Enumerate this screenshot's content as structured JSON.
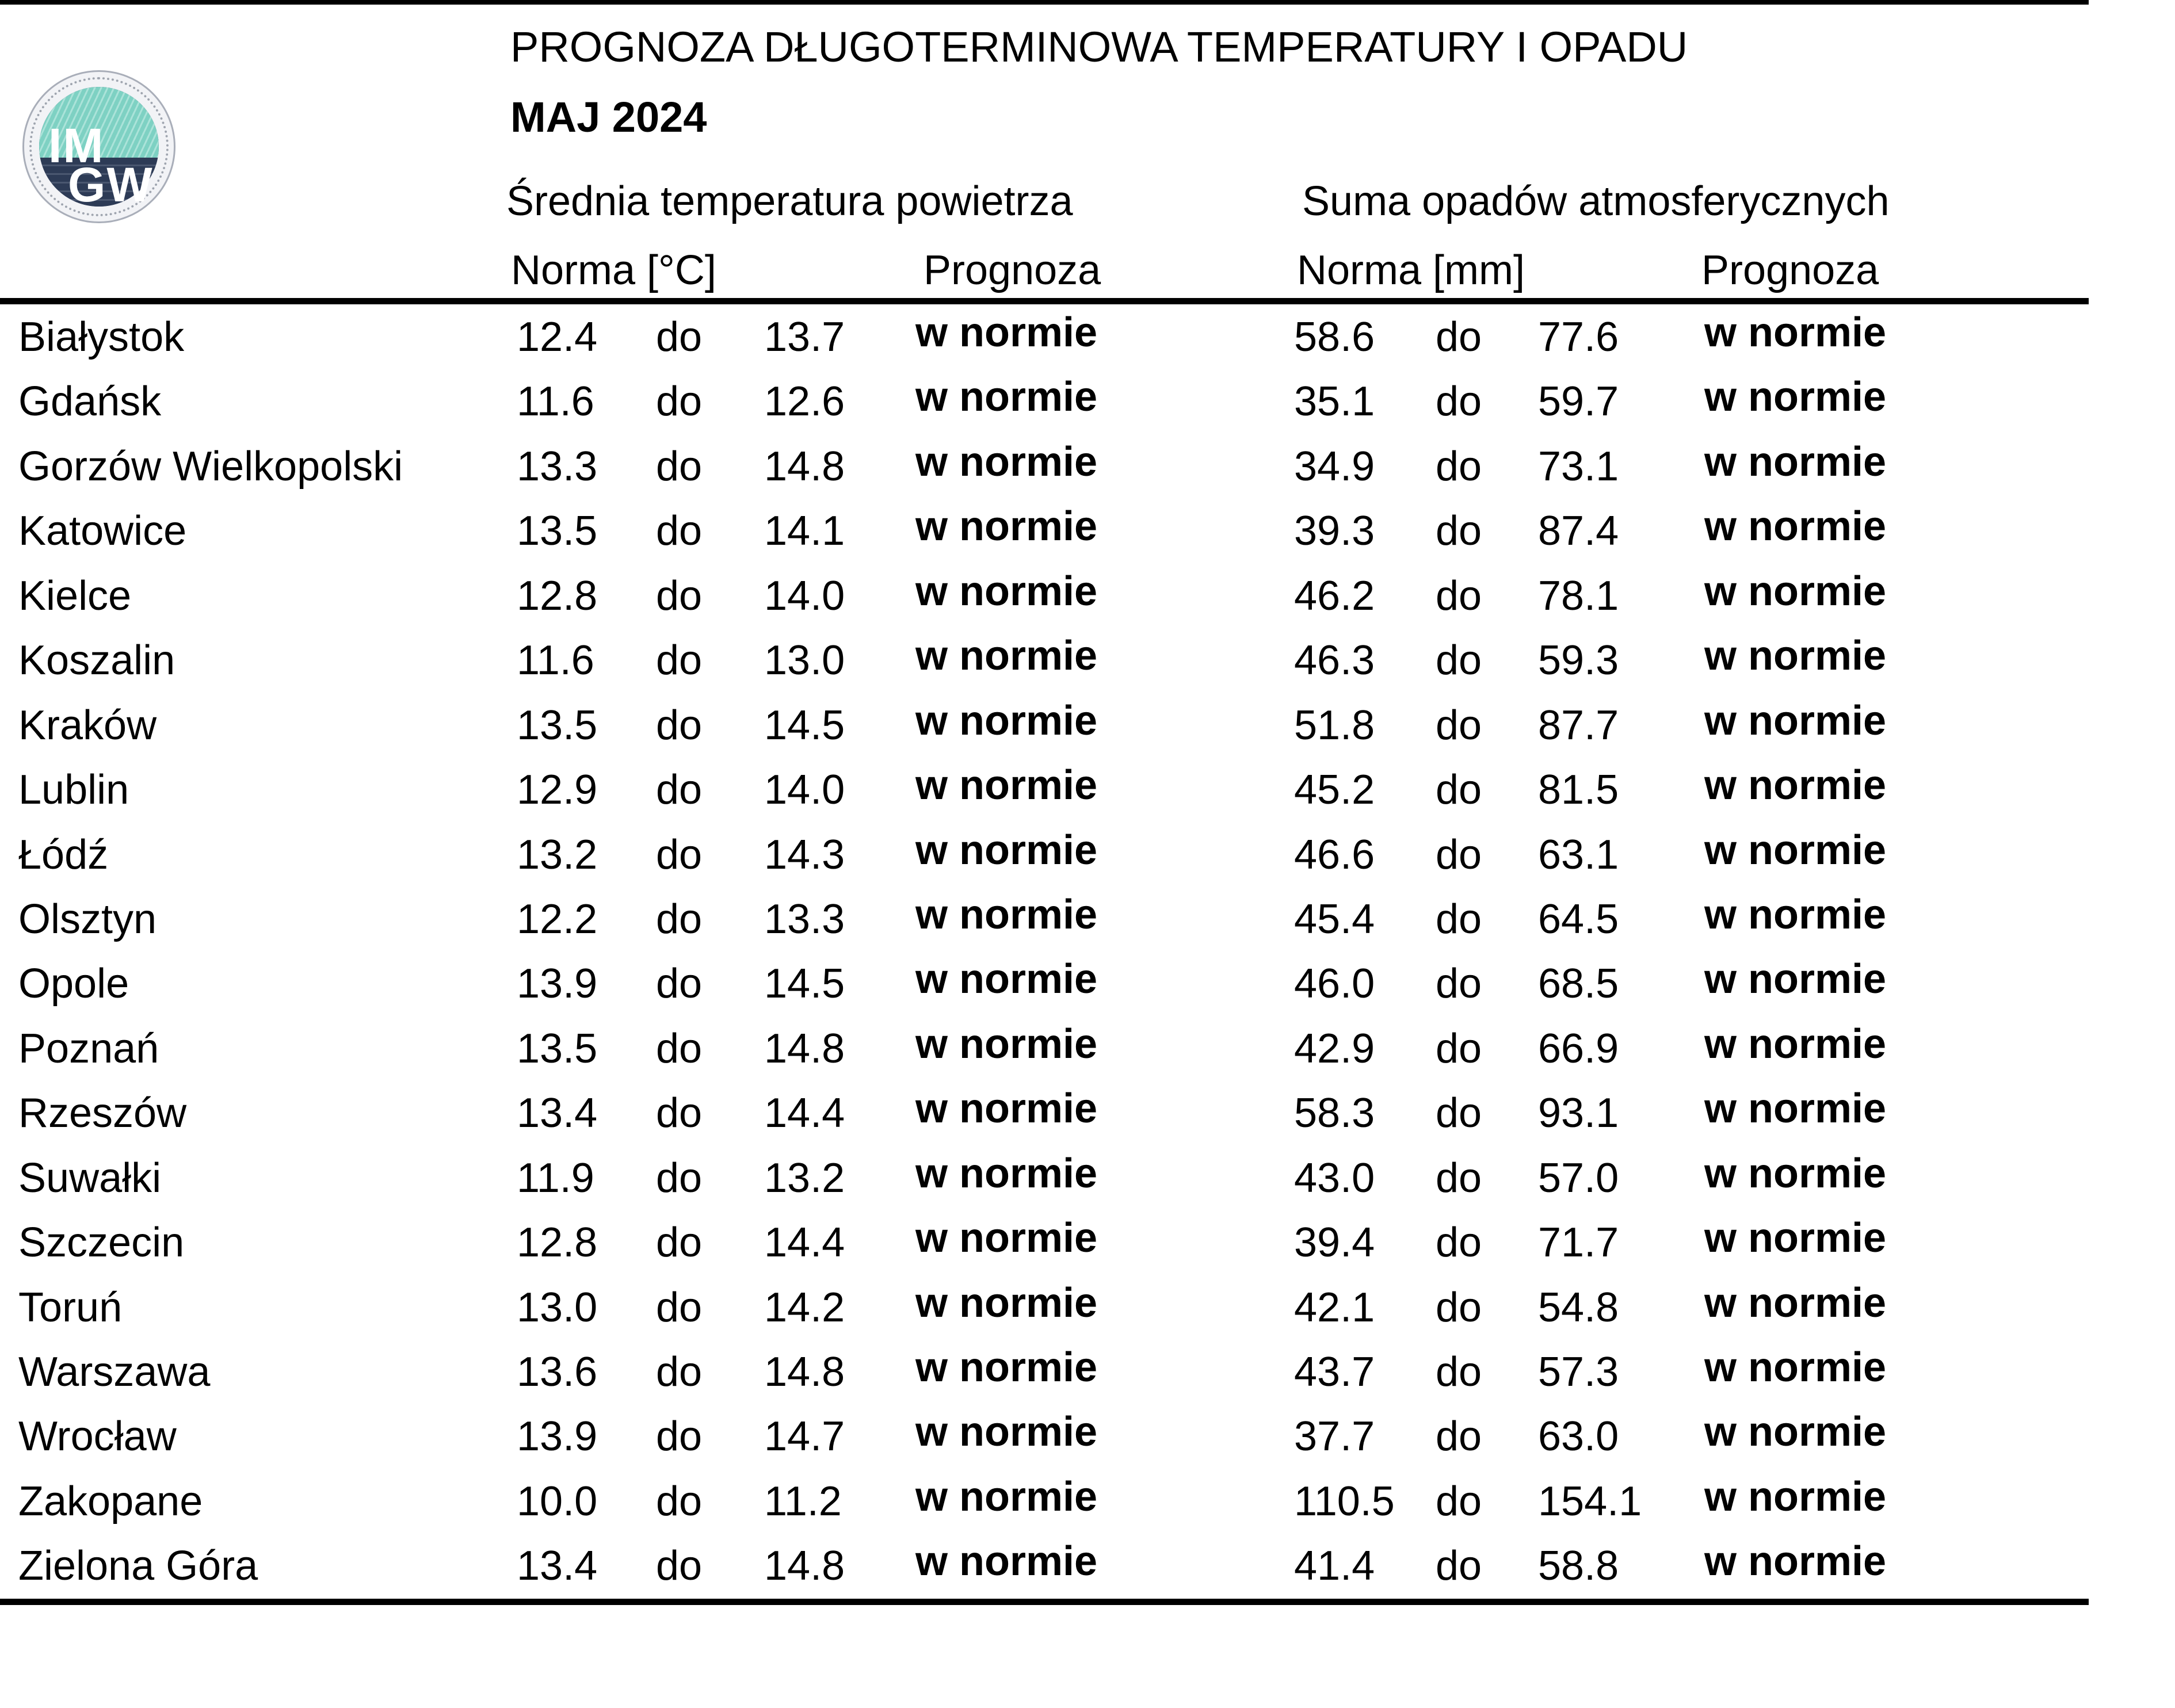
{
  "header": {
    "title": "PROGNOZA DŁUGOTERMINOWA TEMPERATURY I OPADU",
    "subtitle": "MAJ 2024",
    "logo": {
      "line1": "IM",
      "line2": "GW"
    }
  },
  "table": {
    "section_headers": {
      "temperature": "Średnia temperatura powietrza",
      "precipitation": "Suma opadów atmosferycznych"
    },
    "column_headers": {
      "temp_norm": "Norma [°C]",
      "temp_forecast": "Prognoza",
      "precip_norm": "Norma [mm]",
      "precip_forecast": "Prognoza"
    },
    "range_word": "do",
    "rows": [
      {
        "city": "Białystok",
        "temp_min": "12.4",
        "temp_max": "13.7",
        "temp_forecast": "w normie",
        "precip_min": "58.6",
        "precip_max": "77.6",
        "precip_forecast": "w normie"
      },
      {
        "city": "Gdańsk",
        "temp_min": "11.6",
        "temp_max": "12.6",
        "temp_forecast": "w normie",
        "precip_min": "35.1",
        "precip_max": "59.7",
        "precip_forecast": "w normie"
      },
      {
        "city": "Gorzów Wielkopolski",
        "temp_min": "13.3",
        "temp_max": "14.8",
        "temp_forecast": "w normie",
        "precip_min": "34.9",
        "precip_max": "73.1",
        "precip_forecast": "w normie"
      },
      {
        "city": "Katowice",
        "temp_min": "13.5",
        "temp_max": "14.1",
        "temp_forecast": "w normie",
        "precip_min": "39.3",
        "precip_max": "87.4",
        "precip_forecast": "w normie"
      },
      {
        "city": "Kielce",
        "temp_min": "12.8",
        "temp_max": "14.0",
        "temp_forecast": "w normie",
        "precip_min": "46.2",
        "precip_max": "78.1",
        "precip_forecast": "w normie"
      },
      {
        "city": "Koszalin",
        "temp_min": "11.6",
        "temp_max": "13.0",
        "temp_forecast": "w normie",
        "precip_min": "46.3",
        "precip_max": "59.3",
        "precip_forecast": "w normie"
      },
      {
        "city": "Kraków",
        "temp_min": "13.5",
        "temp_max": "14.5",
        "temp_forecast": "w normie",
        "precip_min": "51.8",
        "precip_max": "87.7",
        "precip_forecast": "w normie"
      },
      {
        "city": "Lublin",
        "temp_min": "12.9",
        "temp_max": "14.0",
        "temp_forecast": "w normie",
        "precip_min": "45.2",
        "precip_max": "81.5",
        "precip_forecast": "w normie"
      },
      {
        "city": "Łódź",
        "temp_min": "13.2",
        "temp_max": "14.3",
        "temp_forecast": "w normie",
        "precip_min": "46.6",
        "precip_max": "63.1",
        "precip_forecast": "w normie"
      },
      {
        "city": "Olsztyn",
        "temp_min": "12.2",
        "temp_max": "13.3",
        "temp_forecast": "w normie",
        "precip_min": "45.4",
        "precip_max": "64.5",
        "precip_forecast": "w normie"
      },
      {
        "city": "Opole",
        "temp_min": "13.9",
        "temp_max": "14.5",
        "temp_forecast": "w normie",
        "precip_min": "46.0",
        "precip_max": "68.5",
        "precip_forecast": "w normie"
      },
      {
        "city": "Poznań",
        "temp_min": "13.5",
        "temp_max": "14.8",
        "temp_forecast": "w normie",
        "precip_min": "42.9",
        "precip_max": "66.9",
        "precip_forecast": "w normie"
      },
      {
        "city": "Rzeszów",
        "temp_min": "13.4",
        "temp_max": "14.4",
        "temp_forecast": "w normie",
        "precip_min": "58.3",
        "precip_max": "93.1",
        "precip_forecast": "w normie"
      },
      {
        "city": "Suwałki",
        "temp_min": "11.9",
        "temp_max": "13.2",
        "temp_forecast": "w normie",
        "precip_min": "43.0",
        "precip_max": "57.0",
        "precip_forecast": "w normie"
      },
      {
        "city": "Szczecin",
        "temp_min": "12.8",
        "temp_max": "14.4",
        "temp_forecast": "w normie",
        "precip_min": "39.4",
        "precip_max": "71.7",
        "precip_forecast": "w normie"
      },
      {
        "city": "Toruń",
        "temp_min": "13.0",
        "temp_max": "14.2",
        "temp_forecast": "w normie",
        "precip_min": "42.1",
        "precip_max": "54.8",
        "precip_forecast": "w normie"
      },
      {
        "city": "Warszawa",
        "temp_min": "13.6",
        "temp_max": "14.8",
        "temp_forecast": "w normie",
        "precip_min": "43.7",
        "precip_max": "57.3",
        "precip_forecast": "w normie"
      },
      {
        "city": "Wrocław",
        "temp_min": "13.9",
        "temp_max": "14.7",
        "temp_forecast": "w normie",
        "precip_min": "37.7",
        "precip_max": "63.0",
        "precip_forecast": "w normie"
      },
      {
        "city": "Zakopane",
        "temp_min": "10.0",
        "temp_max": "11.2",
        "temp_forecast": "w normie",
        "precip_min": "110.5",
        "precip_max": "154.1",
        "precip_forecast": "w normie"
      },
      {
        "city": "Zielona Góra",
        "temp_min": "13.4",
        "temp_max": "14.8",
        "temp_forecast": "w normie",
        "precip_min": "41.4",
        "precip_max": "58.8",
        "precip_forecast": "w normie"
      }
    ]
  },
  "colors": {
    "text": "#000000",
    "logo_teal": "#7ed1c3",
    "logo_navy": "#2d3b56",
    "logo_ring": "#f2f3f6"
  }
}
